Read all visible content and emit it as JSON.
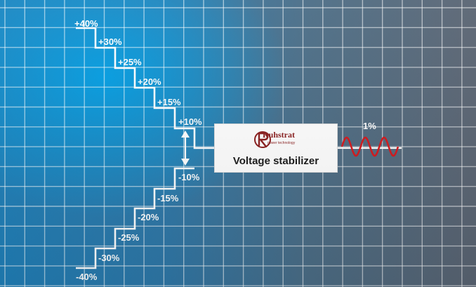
{
  "labels_up": [
    "+40%",
    "+30%",
    "+25%",
    "+20%",
    "+15%",
    "+10%"
  ],
  "labels_down": [
    "-10%",
    "-15%",
    "-20%",
    "-25%",
    "-30%",
    "-40%"
  ],
  "output_label": "1%",
  "device": {
    "label": "Voltage stabilizer",
    "logo_text": "Ruhstrat",
    "logo_subtext": "power technology"
  },
  "colors": {
    "grid": "#ffffff",
    "stairs": "#ffffff",
    "wave": "#d4181c",
    "box_text": "#1a1a1a"
  }
}
